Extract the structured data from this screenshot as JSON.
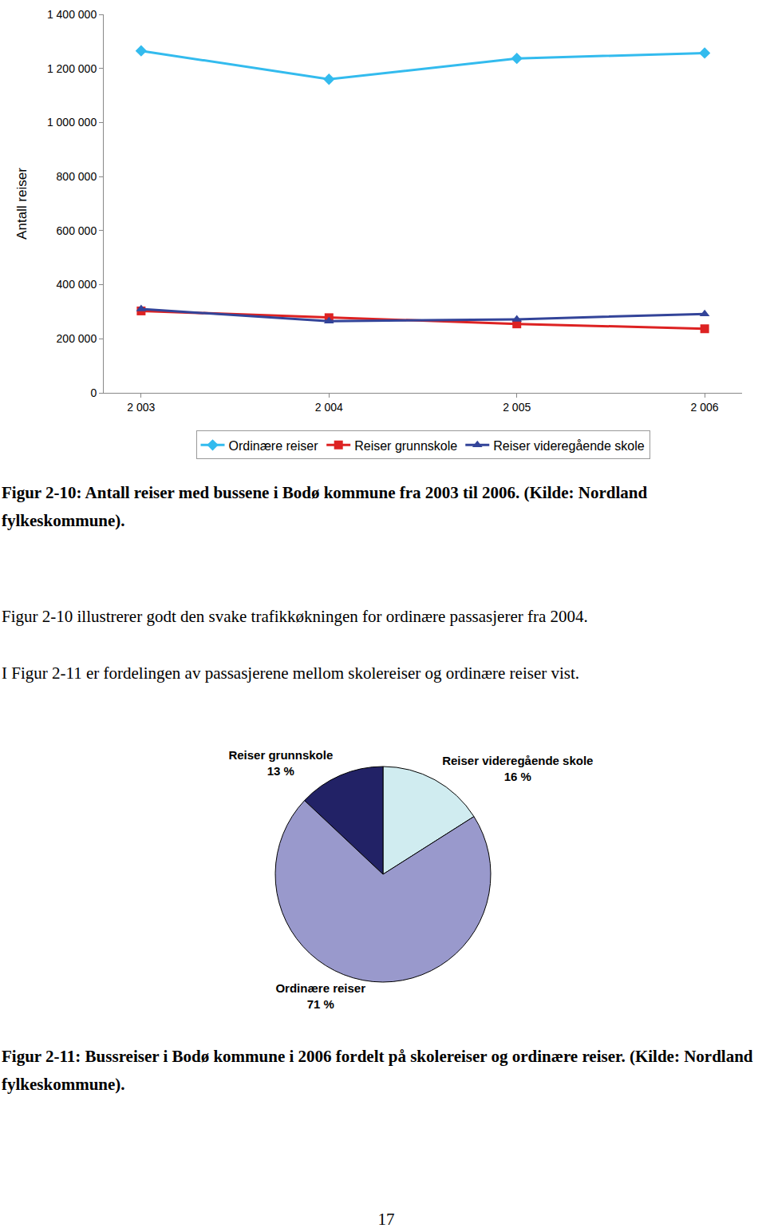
{
  "chart_data": [
    {
      "type": "line",
      "y_label": "Antall reiser",
      "categories": [
        "2 003",
        "2 004",
        "2 005",
        "2 006"
      ],
      "series": [
        {
          "name": "Ordinære reiser",
          "color": "#33bbee",
          "marker": "diamond",
          "line_style": "solid",
          "values": [
            1265000,
            1160000,
            1237000,
            1257000
          ]
        },
        {
          "name": "Reiser grunnskole",
          "color": "#dd2222",
          "marker": "square",
          "line_style": "solid",
          "values": [
            303000,
            278000,
            255000,
            237000
          ]
        },
        {
          "name": "Reiser videregående skole",
          "color": "#334499",
          "marker": "triangle-up",
          "line_style": "solid",
          "values": [
            310000,
            265000,
            272000,
            292000
          ]
        }
      ],
      "ylim": [
        0,
        1400000
      ],
      "yticks": [
        0,
        {
          "value": 200000,
          "label": "200 000"
        },
        {
          "value": 400000,
          "label": "400 000"
        },
        {
          "value": 600000,
          "label": "600 000"
        },
        {
          "value": 800000,
          "label": "800 000"
        },
        {
          "value": 1000000,
          "label": "1 000 000"
        },
        {
          "value": 1200000,
          "label": "1 200 000"
        },
        {
          "value": 1400000,
          "label": "1 400 000"
        }
      ],
      "grid": false,
      "legend": "bottom"
    },
    {
      "type": "pie",
      "categories": [
        "Reiser videregående skole",
        "Reiser grunnskole",
        "Ordinære reiser"
      ],
      "values": [
        16,
        13,
        71
      ],
      "value_labels": [
        "16 %",
        "13 %",
        "71 %"
      ],
      "colors": [
        "#d0ecf0",
        "#222266",
        "#9999cc"
      ],
      "data_labels": true
    }
  ],
  "document": {
    "captions": [
      "Figur 2-10: Antall reiser med bussene i Bodø kommune fra 2003 til 2006. (Kilde: Nordland fylkeskommune).",
      "Figur 2-11: Bussreiser i Bodø kommune i 2006 fordelt på skolereiser og ordinære reiser. (Kilde: Nordland fylkeskommune)."
    ],
    "paragraphs": [
      "Figur 2-10 illustrerer godt den svake trafikkøkningen for ordinære passasjerer fra 2004.",
      "I Figur 2-11 er fordelingen av passasjerene mellom skolereiser og ordinære reiser vist."
    ],
    "page_number": 17
  }
}
